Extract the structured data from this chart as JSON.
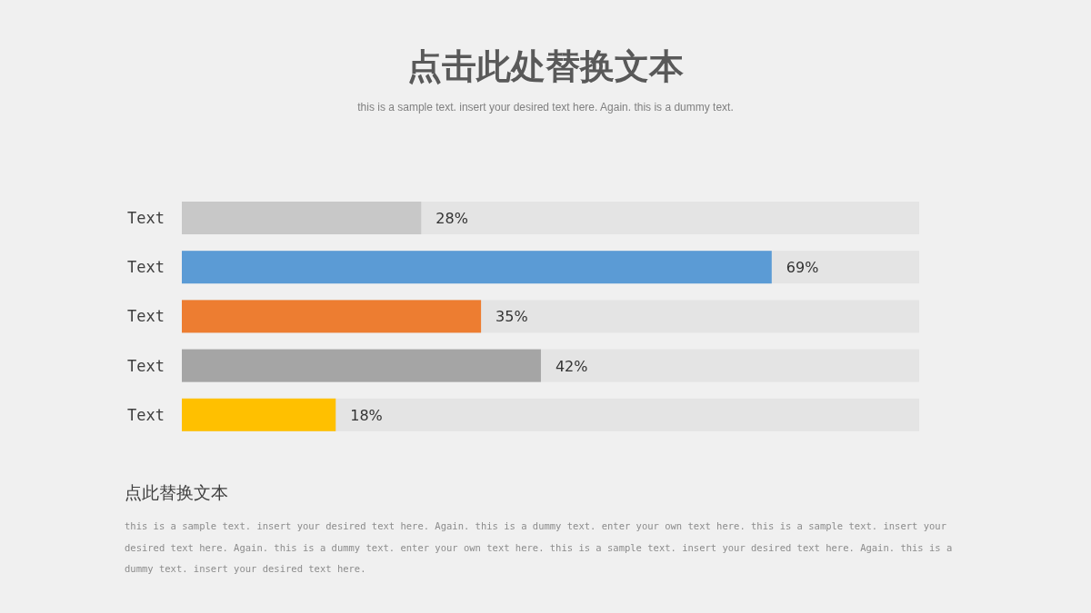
{
  "chart_data": {
    "type": "bar",
    "orientation": "horizontal",
    "title": "点击此处替换文本",
    "subtitle": "this is a sample text. insert your desired text here. Again. this is a dummy text.",
    "categories": [
      "Text",
      "Text",
      "Text",
      "Text",
      "Text"
    ],
    "values": [
      28,
      69,
      35,
      42,
      18
    ],
    "value_labels": [
      "28%",
      "69%",
      "35%",
      "42%",
      "18%"
    ],
    "colors": [
      "#c8c8c8",
      "#5b9bd5",
      "#ed7d31",
      "#a5a5a5",
      "#ffc000"
    ],
    "annotations": [
      "点此替换文本",
      "this is a sample text. insert your desired text here. Again. this is a dummy text. enter your own text here. this is a sample text. insert your desired text here. Again. this is a dummy text. enter your own text here. this is a sample text. insert your desired text here. Again. this is a dummy text. insert your desired text here."
    ]
  }
}
